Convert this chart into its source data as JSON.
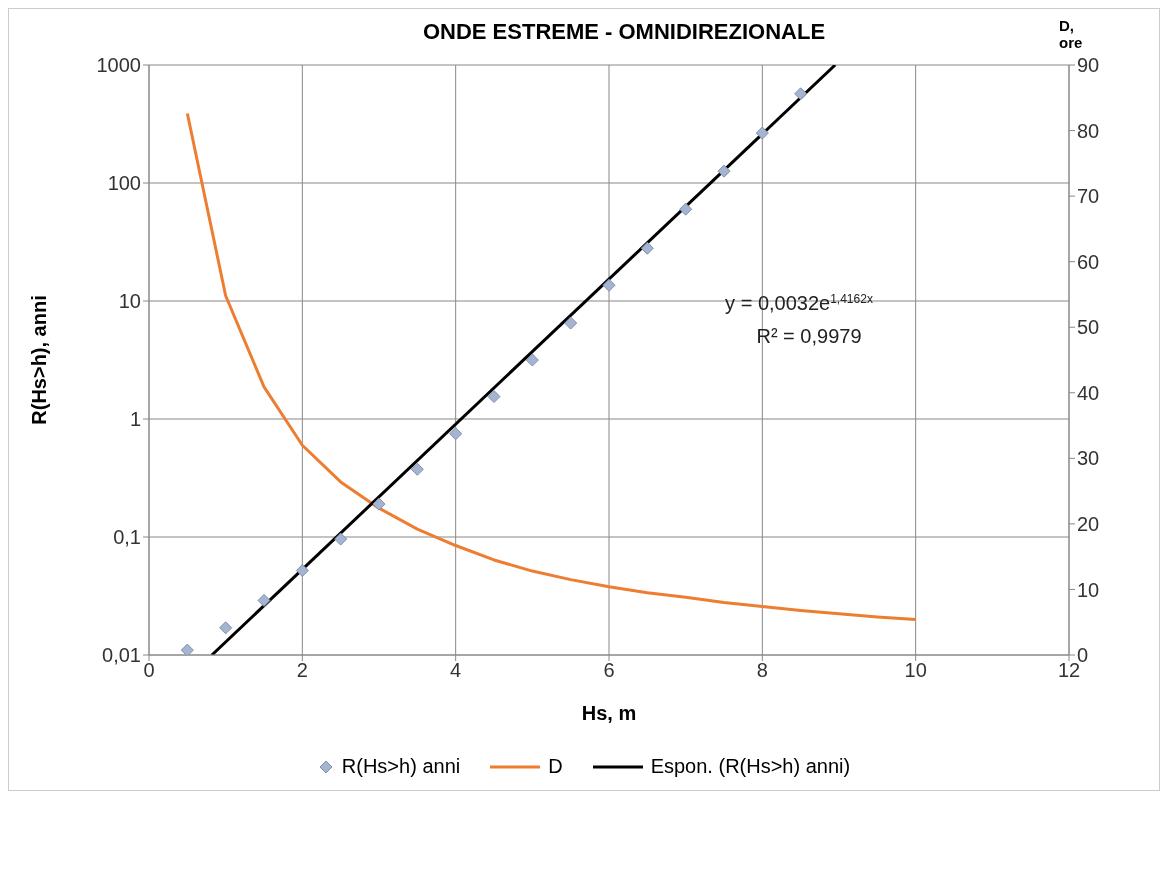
{
  "chart_data": {
    "type": "scatter",
    "title": "ONDE ESTREME - OMNIDIREZIONALE",
    "xlabel": "Hs, m",
    "ylabel": "R(Hs>h), anni",
    "y2label": "D, ore",
    "xlim": [
      0,
      12
    ],
    "xticks": [
      0,
      2,
      4,
      6,
      8,
      10,
      12
    ],
    "ylim": [
      0.01,
      1000
    ],
    "yticks": [
      {
        "value": 0.01,
        "label": "0,01"
      },
      {
        "value": 0.1,
        "label": "0,1"
      },
      1,
      10,
      100,
      1000
    ],
    "y2lim": [
      0,
      90
    ],
    "y2ticks": [
      0,
      10,
      20,
      30,
      40,
      50,
      60,
      70,
      80,
      90
    ],
    "log": "y",
    "grid": true,
    "legend": "bottom",
    "annotations": [
      "y = 0,0032e$^{1,4162x}$",
      "R² = 0,9979"
    ],
    "series": [
      {
        "name": "R(Hs>h) anni",
        "marker": "diamond",
        "color": "#a5b4cf",
        "x": [
          0.5,
          1,
          1.5,
          2,
          2.5,
          3,
          3.5,
          4,
          4.5,
          5,
          5.5,
          6,
          6.5,
          7,
          7.5,
          8,
          8.5
        ],
        "values": [
          0.011,
          0.017,
          0.029,
          0.052,
          0.096,
          0.19,
          0.375,
          0.75,
          1.55,
          3.16,
          6.5,
          13.6,
          28,
          60,
          126,
          265,
          570
        ]
      },
      {
        "name": "D",
        "type": "line",
        "marker": "none",
        "axis": "y2",
        "color": "#ed7d31",
        "x": [
          0.5,
          1,
          1.5,
          2,
          2.5,
          3,
          3.5,
          4,
          4.5,
          5,
          5.5,
          6,
          6.5,
          7,
          7.5,
          8,
          8.5,
          9,
          9.5,
          10
        ],
        "values": [
          82.6,
          54.8,
          40.9,
          32.0,
          26.4,
          22.4,
          19.2,
          16.7,
          14.5,
          12.8,
          11.5,
          10.4,
          9.5,
          8.8,
          8.0,
          7.4,
          6.8,
          6.3,
          5.8,
          5.4
        ]
      },
      {
        "name": "Espon. (R(Hs>h) anni)",
        "type": "line",
        "marker": "none",
        "color": "#000000",
        "x": [
          0.82,
          8.95
        ],
        "values": [
          0.01,
          1000
        ]
      }
    ]
  }
}
